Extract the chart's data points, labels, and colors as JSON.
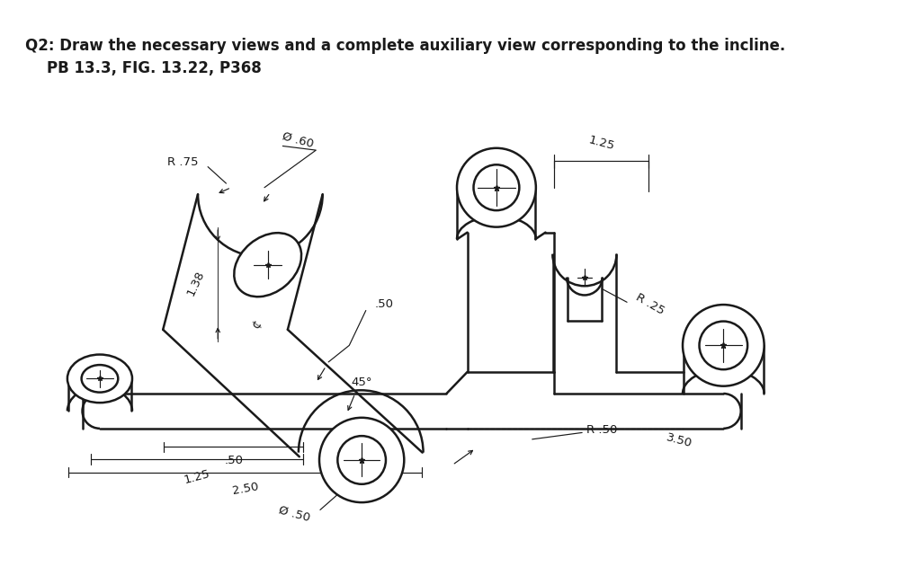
{
  "title": "Q2: Draw the necessary views and a complete auxiliary view corresponding to the incline.",
  "subtitle": "PB 13.3, FIG. 13.22, P368",
  "bg": "#ffffff",
  "lc": "#1a1a1a",
  "lw_main": 1.8,
  "lw_thin": 0.85,
  "lw_dim": 0.85,
  "fs_title": 12.0,
  "fs_sub": 12.0,
  "fs_dim": 9.5,
  "dims": {
    "phi60": "Ø .60",
    "r75": "R .75",
    "r25": "R .25",
    "r50": "R .50",
    "phi50": "Ø .50",
    "d138": "1.38",
    "d050": ".50",
    "d125a": "1.25",
    "d125b": "1.25",
    "d250": "2.50",
    "d350": "3.50",
    "d45": "45°",
    "cl": "¢"
  }
}
